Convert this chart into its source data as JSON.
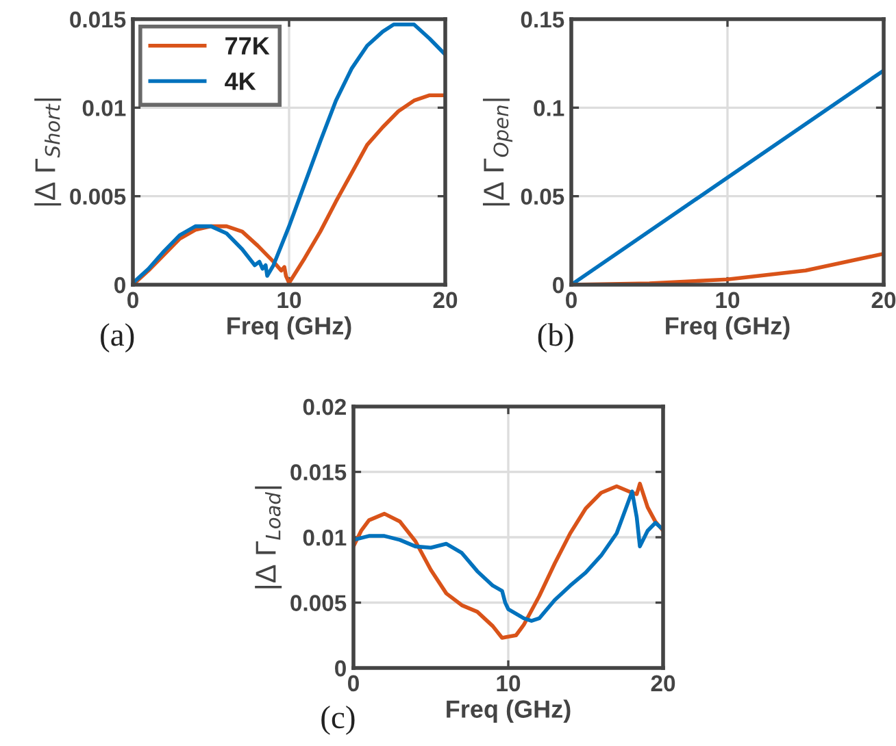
{
  "chart_data": [
    {
      "type": "line",
      "ylabel": "|Δ Γ$_{Short}$|",
      "xlabel": "Freq (GHz)",
      "annotations": [
        "(a)"
      ],
      "xlim": [
        0,
        20
      ],
      "xticks": [
        0,
        10,
        20
      ],
      "ylim": [
        0,
        0.015
      ],
      "yticks": [
        0,
        0.005,
        0.01,
        0.015
      ],
      "grid": true,
      "legend": "top left",
      "series": [
        {
          "name": "77K",
          "color": "#d95319",
          "x": [
            0,
            1,
            2,
            3,
            4,
            5,
            6,
            7,
            8,
            9,
            9.5,
            9.7,
            9.8,
            10,
            11,
            12,
            13,
            14,
            15,
            16,
            17,
            18,
            19,
            20
          ],
          "values": [
            0,
            0.0008,
            0.0017,
            0.0026,
            0.0031,
            0.0033,
            0.0033,
            0.003,
            0.0022,
            0.0013,
            0.0008,
            0.001,
            0.0005,
            0.0001,
            0.0015,
            0.003,
            0.0047,
            0.0063,
            0.0079,
            0.0089,
            0.0098,
            0.0104,
            0.0107,
            0.0107
          ]
        },
        {
          "name": "4K",
          "color": "#0072bd",
          "x": [
            0,
            1,
            2,
            3,
            4,
            5,
            6,
            7,
            7.8,
            8.1,
            8.3,
            8.5,
            8.6,
            9,
            10,
            11,
            12,
            13,
            14,
            15,
            16,
            16.7,
            18,
            19,
            20
          ],
          "values": [
            0.0001,
            0.0009,
            0.0019,
            0.0028,
            0.0033,
            0.0033,
            0.0029,
            0.002,
            0.0011,
            0.0013,
            0.0009,
            0.0011,
            0.0005,
            0.0011,
            0.0033,
            0.0057,
            0.0081,
            0.0104,
            0.0122,
            0.0135,
            0.0143,
            0.0147,
            0.0147,
            0.0139,
            0.013
          ]
        }
      ]
    },
    {
      "type": "line",
      "ylabel": "|Δ Γ$_{Open}$|",
      "xlabel": "Freq (GHz)",
      "annotations": [
        "(b)"
      ],
      "xlim": [
        0,
        20
      ],
      "xticks": [
        0,
        10,
        20
      ],
      "ylim": [
        0,
        0.15
      ],
      "yticks": [
        0,
        0.05,
        0.1,
        0.15
      ],
      "grid": true,
      "series": [
        {
          "color": "#0072bd",
          "x": [
            0,
            20
          ],
          "values": [
            0,
            0.121
          ]
        },
        {
          "color": "#d95319",
          "x": [
            0,
            5,
            10,
            15,
            20
          ],
          "values": [
            0,
            0.0008,
            0.003,
            0.008,
            0.0175
          ]
        }
      ]
    },
    {
      "type": "line",
      "ylabel": "|Δ Γ$_{Load}$|",
      "xlabel": "Freq (GHz)",
      "annotations": [
        "(c)"
      ],
      "xlim": [
        0,
        20
      ],
      "xticks": [
        0,
        10,
        20
      ],
      "ylim": [
        0,
        0.02
      ],
      "yticks": [
        0,
        0.005,
        0.01,
        0.015,
        0.02
      ],
      "grid": true,
      "series": [
        {
          "color": "#d95319",
          "x": [
            0,
            0.5,
            1,
            2,
            3,
            4,
            5,
            6,
            7,
            8,
            9,
            9.6,
            10,
            10.5,
            11,
            12,
            13,
            14,
            15,
            16,
            17,
            18,
            18.3,
            18.5,
            19,
            19.5,
            20
          ],
          "values": [
            0.0093,
            0.0105,
            0.0113,
            0.0118,
            0.0112,
            0.0097,
            0.0075,
            0.0057,
            0.0048,
            0.0043,
            0.0032,
            0.0023,
            0.0024,
            0.0025,
            0.0033,
            0.0055,
            0.008,
            0.0103,
            0.0122,
            0.0134,
            0.0139,
            0.0134,
            0.0133,
            0.0141,
            0.0123,
            0.0112,
            0.0105
          ]
        },
        {
          "color": "#0072bd",
          "x": [
            0,
            1,
            2,
            3,
            4,
            5,
            6,
            7,
            8,
            9,
            9.6,
            9.8,
            10,
            11,
            11.5,
            12,
            13,
            14,
            15,
            16,
            17,
            18,
            18.3,
            18.5,
            19,
            19.5,
            20
          ],
          "values": [
            0.0098,
            0.0101,
            0.0101,
            0.0098,
            0.0093,
            0.0092,
            0.0095,
            0.0088,
            0.0074,
            0.0063,
            0.0059,
            0.005,
            0.0045,
            0.0038,
            0.0036,
            0.0038,
            0.0052,
            0.0063,
            0.0073,
            0.0086,
            0.0103,
            0.0135,
            0.0115,
            0.0093,
            0.0105,
            0.0111,
            0.0106
          ]
        }
      ]
    }
  ]
}
